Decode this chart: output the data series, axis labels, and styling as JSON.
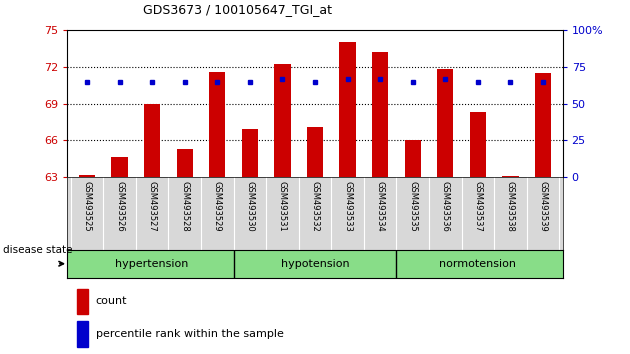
{
  "title": "GDS3673 / 100105647_TGI_at",
  "samples": [
    "GSM493525",
    "GSM493526",
    "GSM493527",
    "GSM493528",
    "GSM493529",
    "GSM493530",
    "GSM493531",
    "GSM493532",
    "GSM493533",
    "GSM493534",
    "GSM493535",
    "GSM493536",
    "GSM493537",
    "GSM493538",
    "GSM493539"
  ],
  "counts": [
    63.2,
    64.6,
    69.0,
    65.3,
    71.6,
    66.9,
    72.2,
    67.1,
    74.0,
    73.2,
    66.0,
    71.8,
    68.3,
    63.1,
    71.5
  ],
  "pct_values": [
    65,
    65,
    65,
    65,
    65,
    65,
    67,
    65,
    67,
    67,
    65,
    67,
    65,
    65,
    65
  ],
  "ylim_left": [
    63,
    75
  ],
  "ylim_right": [
    0,
    100
  ],
  "yticks_left": [
    63,
    66,
    69,
    72,
    75
  ],
  "yticks_right": [
    0,
    25,
    50,
    75,
    100
  ],
  "bar_color": "#cc0000",
  "dot_color": "#0000cc",
  "groups": [
    {
      "label": "hypertension",
      "start": 0,
      "end": 4
    },
    {
      "label": "hypotension",
      "start": 5,
      "end": 9
    },
    {
      "label": "normotension",
      "start": 10,
      "end": 14
    }
  ],
  "group_label": "disease state",
  "group_color": "#88dd88",
  "bar_width": 0.5
}
